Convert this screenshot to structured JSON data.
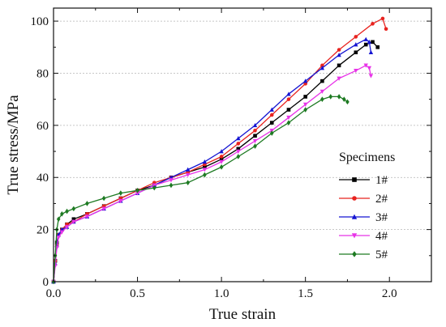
{
  "chart_data": {
    "type": "line",
    "xlabel": "True strain",
    "ylabel": "True stress/MPa",
    "xlim": [
      0,
      2.25
    ],
    "ylim": [
      0,
      105
    ],
    "x_ticks": [
      "0.0",
      "0.5",
      "1.0",
      "1.5",
      "2.0"
    ],
    "y_ticks": [
      "0",
      "20",
      "40",
      "60",
      "80",
      "100"
    ],
    "grid": "horizontal dotted",
    "legend": {
      "title": "Specimens",
      "placement": "bottom-right"
    },
    "series": [
      {
        "name": "1#",
        "color": "#000000",
        "marker": "square",
        "x": [
          0.0,
          0.01,
          0.02,
          0.03,
          0.05,
          0.08,
          0.12,
          0.2,
          0.3,
          0.4,
          0.5,
          0.6,
          0.7,
          0.8,
          0.9,
          1.0,
          1.1,
          1.2,
          1.3,
          1.4,
          1.5,
          1.6,
          1.7,
          1.8,
          1.86,
          1.9,
          1.93
        ],
        "y": [
          0,
          8,
          15,
          18,
          20,
          22,
          24,
          26,
          29,
          32,
          35,
          37,
          40,
          42,
          44,
          47,
          51,
          56,
          61,
          66,
          71,
          77,
          83,
          88,
          91,
          92,
          90
        ]
      },
      {
        "name": "2#",
        "color": "#e8231f",
        "marker": "circle",
        "x": [
          0.0,
          0.01,
          0.02,
          0.03,
          0.05,
          0.08,
          0.12,
          0.2,
          0.3,
          0.4,
          0.5,
          0.6,
          0.7,
          0.8,
          0.9,
          1.0,
          1.1,
          1.2,
          1.3,
          1.4,
          1.5,
          1.6,
          1.7,
          1.8,
          1.9,
          1.96,
          1.98
        ],
        "y": [
          0,
          8,
          14,
          18,
          20,
          22,
          23,
          26,
          29,
          32,
          35,
          38,
          40,
          42,
          45,
          48,
          53,
          58,
          64,
          70,
          76,
          83,
          89,
          94,
          99,
          101,
          97
        ]
      },
      {
        "name": "3#",
        "color": "#1414d2",
        "marker": "triangle-up",
        "x": [
          0.0,
          0.01,
          0.02,
          0.03,
          0.05,
          0.08,
          0.12,
          0.2,
          0.3,
          0.4,
          0.5,
          0.6,
          0.7,
          0.8,
          0.9,
          1.0,
          1.1,
          1.2,
          1.3,
          1.4,
          1.5,
          1.6,
          1.7,
          1.8,
          1.86,
          1.88,
          1.89
        ],
        "y": [
          0,
          7,
          14,
          18,
          20,
          21,
          23,
          25,
          28,
          31,
          34,
          37,
          40,
          43,
          46,
          50,
          55,
          60,
          66,
          72,
          77,
          82,
          87,
          91,
          93,
          92,
          88
        ]
      },
      {
        "name": "4#",
        "color": "#e833e8",
        "marker": "triangle-down",
        "x": [
          0.0,
          0.01,
          0.02,
          0.03,
          0.05,
          0.08,
          0.12,
          0.2,
          0.3,
          0.4,
          0.5,
          0.6,
          0.7,
          0.8,
          0.9,
          1.0,
          1.1,
          1.2,
          1.3,
          1.4,
          1.5,
          1.6,
          1.7,
          1.8,
          1.86,
          1.88,
          1.89
        ],
        "y": [
          0,
          6,
          13,
          17,
          19,
          21,
          23,
          25,
          28,
          31,
          34,
          37,
          39,
          41,
          43,
          46,
          50,
          54,
          58,
          63,
          68,
          73,
          78,
          81,
          83,
          82,
          79
        ]
      },
      {
        "name": "5#",
        "color": "#1d7a22",
        "marker": "diamond",
        "x": [
          0.0,
          0.01,
          0.02,
          0.03,
          0.05,
          0.08,
          0.12,
          0.2,
          0.3,
          0.4,
          0.5,
          0.6,
          0.7,
          0.8,
          0.9,
          1.0,
          1.1,
          1.2,
          1.3,
          1.4,
          1.5,
          1.6,
          1.65,
          1.7,
          1.73,
          1.75
        ],
        "y": [
          0,
          10,
          20,
          24,
          26,
          27,
          28,
          30,
          32,
          34,
          35,
          36,
          37,
          38,
          41,
          44,
          48,
          52,
          57,
          61,
          66,
          70,
          71,
          71,
          70,
          69
        ]
      }
    ]
  }
}
